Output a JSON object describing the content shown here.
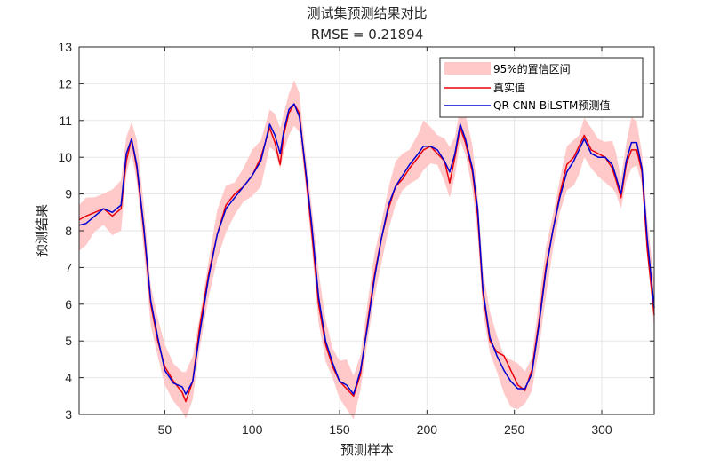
{
  "chart_data": {
    "type": "line",
    "title": "测试集预测结果对比",
    "subtitle": "RMSE = 0.21894",
    "xlabel": "预测样本",
    "ylabel": "预测结果",
    "xlim": [
      1,
      330
    ],
    "ylim": [
      3,
      13
    ],
    "xticks": [
      50,
      100,
      150,
      200,
      250,
      300
    ],
    "yticks": [
      3,
      4,
      5,
      6,
      7,
      8,
      9,
      10,
      11,
      12,
      13
    ],
    "grid": true,
    "legend_position": "top-right",
    "colors": {
      "band": "#ffc9c9",
      "true": "#e8000b",
      "pred": "#0000d4",
      "grid": "#e6e6e6",
      "axis": "#262626"
    },
    "band_halfwidth": 0.55,
    "series": [
      {
        "name": "95%的置信区间",
        "kind": "band",
        "derived_from": "QR-CNN-BiLSTM预测值"
      },
      {
        "name": "真实值",
        "kind": "line",
        "x": [
          1,
          5,
          10,
          15,
          20,
          25,
          28,
          31,
          34,
          38,
          42,
          46,
          50,
          55,
          60,
          62,
          66,
          70,
          75,
          80,
          85,
          90,
          95,
          100,
          105,
          110,
          113,
          116,
          118,
          121,
          124,
          127,
          130,
          134,
          138,
          142,
          146,
          150,
          154,
          158,
          162,
          166,
          170,
          174,
          178,
          182,
          186,
          190,
          195,
          198,
          202,
          206,
          210,
          213,
          216,
          219,
          222,
          226,
          229,
          232,
          236,
          240,
          244,
          248,
          252,
          256,
          260,
          264,
          268,
          272,
          276,
          280,
          284,
          287,
          290,
          294,
          298,
          302,
          306,
          308,
          311,
          314,
          317,
          320,
          323,
          326,
          330
        ],
        "y": [
          8.3,
          8.4,
          8.5,
          8.6,
          8.4,
          8.6,
          9.9,
          10.5,
          9.7,
          8.0,
          6.0,
          5.0,
          4.3,
          3.9,
          3.6,
          3.35,
          3.9,
          5.4,
          6.8,
          7.9,
          8.7,
          9.0,
          9.2,
          9.5,
          10.0,
          10.8,
          10.4,
          9.8,
          10.6,
          11.2,
          11.45,
          11.2,
          9.8,
          8.0,
          6.0,
          4.9,
          4.3,
          3.9,
          3.7,
          3.5,
          4.1,
          5.5,
          6.8,
          7.8,
          8.6,
          9.2,
          9.4,
          9.7,
          10.0,
          10.2,
          10.3,
          10.1,
          9.9,
          9.3,
          10.0,
          10.8,
          10.4,
          9.6,
          8.4,
          6.3,
          5.0,
          4.7,
          4.6,
          4.2,
          3.8,
          3.65,
          4.2,
          5.5,
          7.0,
          8.0,
          9.0,
          9.8,
          10.0,
          10.3,
          10.6,
          10.2,
          10.1,
          10.0,
          9.7,
          9.4,
          8.9,
          9.8,
          10.2,
          10.2,
          9.6,
          7.5,
          5.7
        ]
      },
      {
        "name": "QR-CNN-BiLSTM预测值",
        "kind": "line",
        "x": [
          1,
          5,
          10,
          15,
          20,
          25,
          28,
          31,
          34,
          38,
          42,
          46,
          50,
          55,
          60,
          62,
          66,
          70,
          75,
          80,
          85,
          90,
          95,
          100,
          105,
          110,
          113,
          116,
          118,
          121,
          124,
          127,
          130,
          134,
          138,
          142,
          146,
          150,
          154,
          158,
          162,
          166,
          170,
          174,
          178,
          182,
          186,
          190,
          195,
          198,
          202,
          206,
          210,
          213,
          216,
          219,
          222,
          226,
          229,
          232,
          236,
          240,
          244,
          248,
          252,
          256,
          260,
          264,
          268,
          272,
          276,
          280,
          284,
          287,
          290,
          294,
          298,
          302,
          306,
          308,
          311,
          314,
          317,
          320,
          323,
          326,
          330
        ],
        "y": [
          8.15,
          8.2,
          8.4,
          8.6,
          8.5,
          8.7,
          10.1,
          10.5,
          9.8,
          8.1,
          6.1,
          5.1,
          4.2,
          3.85,
          3.75,
          3.55,
          3.9,
          5.2,
          6.7,
          7.9,
          8.6,
          8.9,
          9.2,
          9.5,
          9.9,
          10.9,
          10.6,
          10.1,
          10.7,
          11.3,
          11.45,
          11.1,
          9.9,
          8.2,
          6.2,
          5.0,
          4.4,
          3.9,
          3.8,
          3.55,
          4.2,
          5.4,
          6.7,
          7.8,
          8.7,
          9.2,
          9.5,
          9.8,
          10.1,
          10.3,
          10.3,
          10.2,
          9.9,
          9.6,
          10.1,
          10.9,
          10.5,
          9.7,
          8.6,
          6.4,
          5.1,
          4.6,
          4.2,
          3.9,
          3.7,
          3.7,
          4.1,
          5.4,
          6.9,
          8.0,
          8.9,
          9.6,
          9.9,
          10.2,
          10.5,
          10.1,
          10.0,
          10.0,
          9.8,
          9.5,
          9.0,
          9.9,
          10.4,
          10.4,
          9.7,
          7.8,
          5.9
        ]
      }
    ]
  }
}
